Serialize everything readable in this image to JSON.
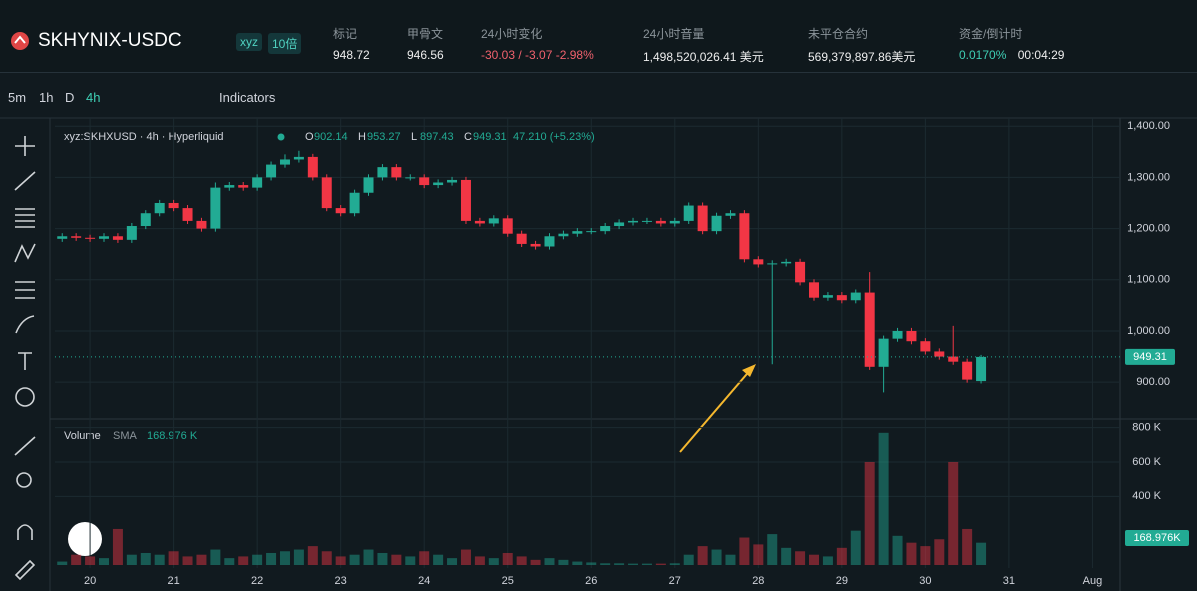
{
  "header": {
    "symbol": "SKHYNIX-USDC",
    "tag": "xyz",
    "leverage": "10倍",
    "stats": [
      {
        "label": "标记",
        "value": "948.72"
      },
      {
        "label": "甲骨文",
        "value": "946.56"
      },
      {
        "label": "24小时变化",
        "value": "-30.03 / -3.07 -2.98%"
      },
      {
        "label": "24小时音量",
        "value": "1,498,520,026.41 美元"
      },
      {
        "label": "未平仓合约",
        "value": "569,379,897.86美元"
      },
      {
        "label": "资金/倒计时",
        "value": "0.0170%",
        "extra": "00:04:29"
      }
    ]
  },
  "toolbar": {
    "intervals": [
      "5m",
      "1h",
      "D",
      "4h"
    ],
    "indicators": "Indicators"
  },
  "chart_data": {
    "type": "candlestick",
    "legend": {
      "title": "xyz:SKHXUSD · 4h · Hyperliquid",
      "o": "O",
      "h": "H",
      "l": "L",
      "c": "C",
      "change": "47.210 (+5.23%)"
    },
    "volume_legend": {
      "name": "Volume",
      "sma": "SMA",
      "sma_value": "168.976 K",
      "tag": "168.976K"
    },
    "up_color": "#22ab94",
    "down_color": "#f23645",
    "x": [
      19.6667,
      19.8333,
      20,
      20.1667,
      20.3333,
      20.5,
      20.6667,
      20.8333,
      21,
      21.1667,
      21.3333,
      21.5,
      21.6667,
      21.8333,
      22,
      22.1667,
      22.3333,
      22.5,
      22.6667,
      22.8333,
      23,
      23.1667,
      23.3333,
      23.5,
      23.6667,
      23.8333,
      24,
      24.1667,
      24.3333,
      24.5,
      24.6667,
      24.8333,
      25,
      25.1667,
      25.3333,
      25.5,
      25.6667,
      25.8333,
      26,
      26.1667,
      26.3333,
      26.5,
      26.6667,
      26.8333,
      27,
      27.1667,
      27.3333,
      27.5,
      27.6667,
      27.8333,
      28,
      28.1667,
      28.3333,
      28.5,
      28.6667,
      28.8333,
      29,
      29.1667,
      29.3333,
      29.5,
      29.6667,
      29.8333,
      30,
      30.1667,
      30.3333,
      30.5,
      30.6667
    ],
    "open": [
      1180,
      1185,
      1182,
      1180,
      1185,
      1178,
      1205,
      1230,
      1250,
      1240,
      1215,
      1200,
      1280,
      1285,
      1280,
      1300,
      1325,
      1335,
      1340,
      1300,
      1240,
      1230,
      1270,
      1300,
      1320,
      1300,
      1300,
      1285,
      1290,
      1295,
      1215,
      1210,
      1220,
      1190,
      1170,
      1165,
      1185,
      1190,
      1195,
      1195,
      1205,
      1212,
      1215,
      1215,
      1210,
      1215,
      1245,
      1195,
      1225,
      1230,
      1140,
      1130,
      1132,
      1135,
      1095,
      1065,
      1070,
      1060,
      1075,
      930,
      985,
      1000,
      980,
      960,
      950,
      940,
      902.14
    ],
    "high": [
      1191,
      1191,
      1188,
      1191,
      1191,
      1211,
      1236,
      1256,
      1256,
      1246,
      1221,
      1290,
      1291,
      1291,
      1306,
      1331,
      1345,
      1352,
      1346,
      1306,
      1246,
      1276,
      1306,
      1326,
      1326,
      1306,
      1306,
      1296,
      1301,
      1301,
      1221,
      1226,
      1226,
      1196,
      1176,
      1191,
      1196,
      1201,
      1201,
      1211,
      1218,
      1221,
      1221,
      1221,
      1221,
      1251,
      1251,
      1231,
      1236,
      1236,
      1146,
      1138,
      1141,
      1141,
      1101,
      1076,
      1076,
      1081,
      1115,
      991,
      1006,
      1006,
      986,
      966,
      1010,
      946,
      953.27
    ],
    "low": [
      1174,
      1176,
      1174,
      1174,
      1172,
      1172,
      1199,
      1224,
      1234,
      1209,
      1194,
      1194,
      1274,
      1274,
      1274,
      1294,
      1319,
      1329,
      1294,
      1234,
      1224,
      1224,
      1264,
      1294,
      1294,
      1294,
      1279,
      1279,
      1284,
      1209,
      1204,
      1204,
      1184,
      1164,
      1159,
      1159,
      1179,
      1184,
      1189,
      1189,
      1199,
      1206,
      1209,
      1204,
      1204,
      1209,
      1189,
      1189,
      1219,
      1134,
      1124,
      935,
      1126,
      1089,
      1059,
      1059,
      1054,
      1054,
      924,
      880,
      979,
      974,
      954,
      944,
      934,
      899,
      897.43
    ],
    "close": [
      1185,
      1182,
      1180,
      1185,
      1178,
      1205,
      1230,
      1250,
      1240,
      1215,
      1200,
      1280,
      1285,
      1280,
      1300,
      1325,
      1335,
      1340,
      1300,
      1240,
      1230,
      1270,
      1300,
      1320,
      1300,
      1300,
      1285,
      1290,
      1295,
      1215,
      1210,
      1220,
      1190,
      1170,
      1165,
      1185,
      1190,
      1195,
      1195,
      1205,
      1212,
      1215,
      1215,
      1210,
      1215,
      1245,
      1195,
      1225,
      1230,
      1140,
      1130,
      1132,
      1135,
      1095,
      1065,
      1070,
      1060,
      1075,
      930,
      985,
      1000,
      980,
      960,
      950,
      940,
      905,
      949.31
    ],
    "volume": [
      20000,
      60000,
      50000,
      40000,
      210000,
      60000,
      70000,
      60000,
      80000,
      50000,
      60000,
      90000,
      40000,
      50000,
      60000,
      70000,
      80000,
      90000,
      110000,
      80000,
      50000,
      60000,
      90000,
      70000,
      60000,
      50000,
      80000,
      60000,
      40000,
      90000,
      50000,
      40000,
      70000,
      50000,
      30000,
      40000,
      30000,
      20000,
      15000,
      10000,
      10000,
      8000,
      8000,
      8000,
      10000,
      60000,
      110000,
      90000,
      60000,
      160000,
      120000,
      180000,
      100000,
      80000,
      60000,
      50000,
      100000,
      200000,
      600000,
      770000,
      170000,
      130000,
      110000,
      150000,
      600000,
      210000,
      130000
    ],
    "xlim": [
      19.58,
      32.33
    ],
    "xticks": [
      20,
      21,
      22,
      23,
      24,
      25,
      26,
      27,
      28,
      29,
      30,
      31,
      {
        "value": 32,
        "label": "Aug"
      }
    ],
    "ylim": [
      830,
      1416
    ],
    "yticks": [
      {
        "value": 900,
        "label": "900.00"
      },
      {
        "value": 1000,
        "label": "1,000.00"
      },
      {
        "value": 1100,
        "label": "1,100.00"
      },
      {
        "value": 1200,
        "label": "1,200.00"
      },
      {
        "value": 1300,
        "label": "1,300.00"
      },
      {
        "value": 1400,
        "label": "1,400.00"
      }
    ],
    "volume_ylim": [
      0,
      833000
    ],
    "volume_yticks": [
      {
        "value": 400000,
        "label": "400 K"
      },
      {
        "value": 600000,
        "label": "600 K"
      },
      {
        "value": 800000,
        "label": "800 K"
      }
    ],
    "grid": true
  }
}
